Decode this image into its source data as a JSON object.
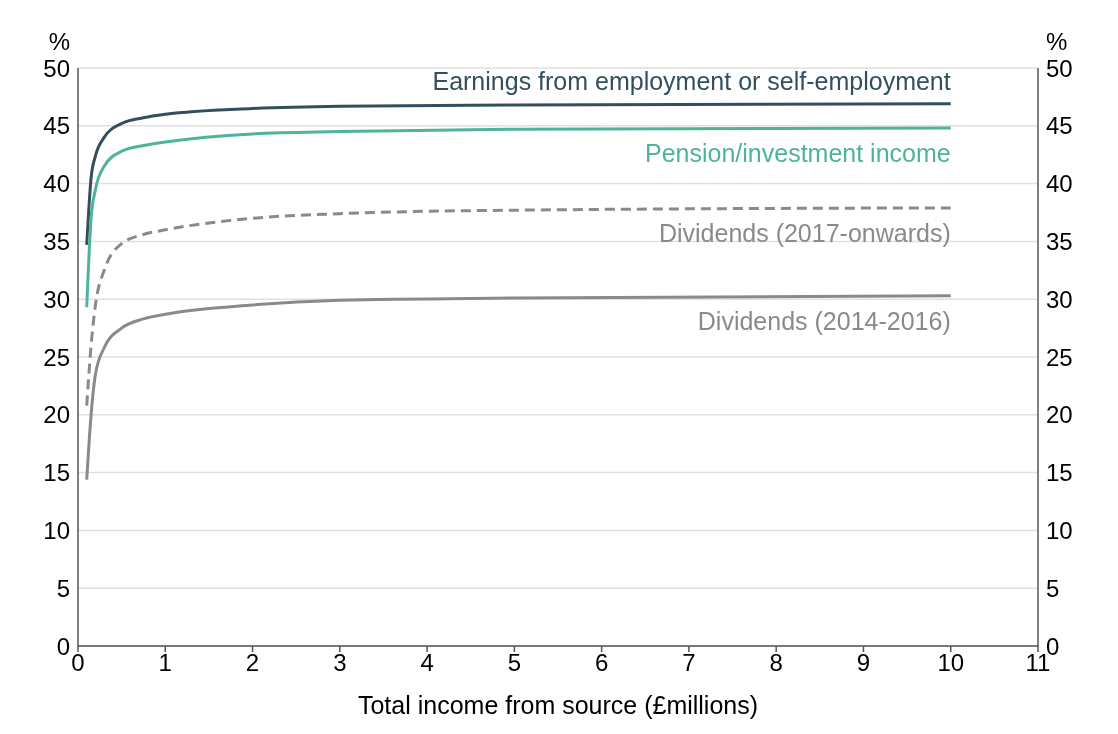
{
  "chart_data": {
    "type": "line",
    "xlabel": "Total income from source (£millions)",
    "ylabel": "%",
    "y2label": "%",
    "xlim": [
      0,
      11
    ],
    "xticks": [
      0,
      1,
      2,
      3,
      4,
      5,
      6,
      7,
      8,
      9,
      10,
      11
    ],
    "ylim": [
      0,
      50
    ],
    "yticks": [
      0,
      5,
      10,
      15,
      20,
      25,
      30,
      35,
      40,
      45,
      50
    ],
    "y2lim": [
      0,
      50
    ],
    "y2ticks": [
      0,
      5,
      10,
      15,
      20,
      25,
      30,
      35,
      40,
      45,
      50
    ],
    "grid": "y",
    "legend": false,
    "marker": "none",
    "x": [
      0.1,
      0.15,
      0.2,
      0.3,
      0.5,
      0.75,
      1,
      2,
      3,
      5,
      10
    ],
    "series": [
      {
        "name": "Earnings from employment or self-employment",
        "color": "#344f5c",
        "line_style": "solid",
        "values": [
          34.7,
          40.5,
          42.4,
          44.0,
          45.2,
          45.7,
          46.0,
          46.5,
          46.7,
          46.8,
          46.9
        ]
      },
      {
        "name": "Pension/investment income",
        "color": "#4fb39b",
        "line_style": "solid",
        "values": [
          29.3,
          37.0,
          39.5,
          41.5,
          42.8,
          43.3,
          43.6,
          44.3,
          44.5,
          44.7,
          44.8
        ]
      },
      {
        "name": "Dividends (2017-onwards)",
        "color": "#8a8a8a",
        "line_style": "dashed",
        "values": [
          20.8,
          26.0,
          29.5,
          32.5,
          34.8,
          35.6,
          36.0,
          37.0,
          37.4,
          37.7,
          37.9
        ]
      },
      {
        "name": "Dividends (2014-2016)",
        "color": "#8a8a8a",
        "line_style": "solid",
        "values": [
          14.4,
          20.0,
          23.5,
          25.8,
          27.5,
          28.3,
          28.7,
          29.5,
          29.9,
          30.1,
          30.3
        ]
      }
    ]
  }
}
